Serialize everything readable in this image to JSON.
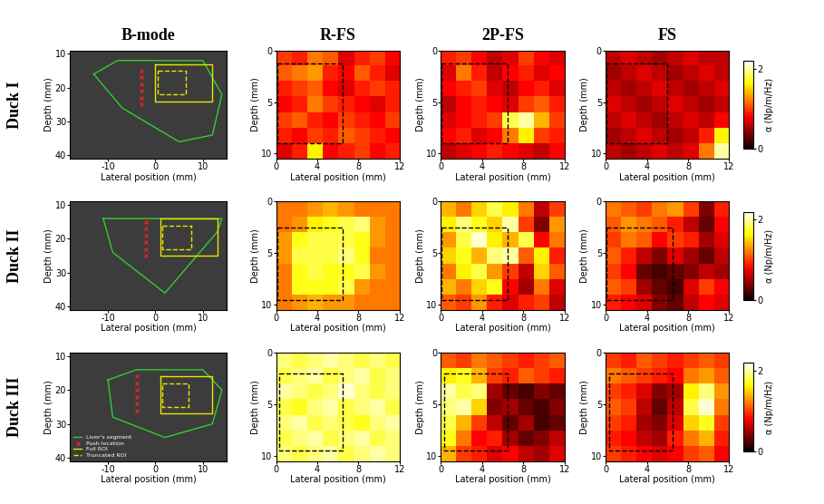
{
  "figure": {
    "column_titles": [
      "B-mode",
      "R-FS",
      "2P-FS",
      "FS"
    ],
    "row_labels": [
      "Duck I",
      "Duck II",
      "Duck III"
    ],
    "colorbar": {
      "label": "α (Np/m/Hz)",
      "range": [
        0,
        2.2
      ],
      "ticks": [
        0,
        2
      ]
    }
  },
  "chart_data": [
    {
      "type": "bmode",
      "xlabel": "Lateral position (mm)",
      "ylabel": "Depth (mm)",
      "xlim": [
        -18,
        15
      ],
      "ylim": [
        41,
        9
      ],
      "xticks": [
        -10,
        0,
        10
      ],
      "yticks": [
        10,
        20,
        30,
        40
      ],
      "liver_segment": {
        "color": "#33cc33",
        "x": [
          -13,
          -8,
          10,
          14,
          12,
          5,
          -7,
          -13
        ],
        "y": [
          16,
          12,
          12,
          22,
          34,
          36,
          26,
          16
        ]
      },
      "push_location": {
        "color": "#ff2020",
        "marker": "x",
        "x": [
          -3,
          -3,
          -3,
          -3,
          -3,
          -3
        ],
        "y": [
          15,
          17,
          19,
          21,
          23,
          25
        ]
      },
      "full_roi": {
        "color": "#e6e600",
        "line_style": "solid",
        "x": [
          0,
          12
        ],
        "y": [
          13,
          24
        ]
      },
      "truncated_roi": {
        "color": "#e6e600",
        "line_style": "dashed",
        "x": [
          0.5,
          6.5
        ],
        "y": [
          15,
          22
        ]
      }
    },
    {
      "type": "heatmap",
      "xlabel": "Lateral position (mm)",
      "ylabel": "Depth (mm)",
      "xlim": [
        0,
        12
      ],
      "ylim": [
        10.5,
        0
      ],
      "xticks": [
        0,
        4,
        8,
        12
      ],
      "yticks": [
        0,
        5,
        10
      ],
      "cells": [
        [
          1.0,
          0.9,
          1.2,
          1.1,
          0.7,
          0.9,
          1.0,
          0.8
        ],
        [
          1.1,
          1.2,
          1.3,
          0.9,
          0.8,
          1.1,
          0.9,
          0.7
        ],
        [
          0.9,
          1.0,
          1.1,
          0.8,
          0.7,
          0.9,
          1.0,
          0.9
        ],
        [
          0.8,
          0.9,
          1.2,
          1.0,
          0.9,
          0.8,
          0.7,
          0.9
        ],
        [
          1.0,
          1.1,
          0.9,
          0.8,
          1.0,
          0.9,
          0.8,
          1.0
        ],
        [
          0.9,
          0.8,
          1.0,
          0.9,
          1.1,
          1.0,
          0.9,
          0.8
        ],
        [
          0.7,
          0.9,
          1.6,
          0.8,
          0.9,
          1.0,
          0.8,
          0.9
        ]
      ],
      "truncated_roi": {
        "color": "black",
        "line_style": "dashed",
        "x": [
          0.1,
          6.5
        ],
        "y": [
          1.3,
          9.0
        ]
      }
    },
    {
      "type": "heatmap",
      "xlabel": "Lateral position (mm)",
      "ylabel": "Depth (mm)",
      "xlim": [
        0,
        12
      ],
      "ylim": [
        10.5,
        0
      ],
      "xticks": [
        0,
        4,
        8,
        12
      ],
      "yticks": [
        0,
        5,
        10
      ],
      "cells": [
        [
          0.9,
          1.0,
          0.8,
          0.6,
          0.7,
          1.0,
          0.8,
          0.7
        ],
        [
          0.7,
          1.2,
          0.9,
          0.6,
          0.8,
          0.9,
          0.7,
          0.8
        ],
        [
          0.8,
          0.9,
          1.0,
          0.7,
          0.6,
          0.8,
          0.9,
          0.7
        ],
        [
          0.6,
          0.8,
          0.9,
          0.8,
          0.7,
          1.0,
          1.1,
          0.9
        ],
        [
          0.7,
          0.8,
          0.9,
          1.0,
          1.8,
          2.0,
          1.4,
          1.0
        ],
        [
          0.8,
          0.9,
          0.7,
          0.8,
          1.2,
          1.6,
          1.0,
          0.9
        ],
        [
          0.6,
          0.7,
          0.8,
          0.9,
          0.8,
          0.7,
          0.6,
          0.8
        ]
      ],
      "truncated_roi": {
        "color": "black",
        "line_style": "dashed",
        "x": [
          0.1,
          6.5
        ],
        "y": [
          1.3,
          9.0
        ]
      }
    },
    {
      "type": "heatmap",
      "xlabel": "Lateral position (mm)",
      "ylabel": "Depth (mm)",
      "xlim": [
        0,
        12
      ],
      "ylim": [
        10.5,
        0
      ],
      "xticks": [
        0,
        4,
        8,
        12
      ],
      "yticks": [
        0,
        5,
        10
      ],
      "cells": [
        [
          0.6,
          0.7,
          0.6,
          0.5,
          0.6,
          0.7,
          0.6,
          0.6
        ],
        [
          0.5,
          0.6,
          0.7,
          0.6,
          0.5,
          0.6,
          0.7,
          0.6
        ],
        [
          0.6,
          0.5,
          0.6,
          0.7,
          0.6,
          0.5,
          0.6,
          0.7
        ],
        [
          0.7,
          0.6,
          0.5,
          0.6,
          0.7,
          0.6,
          0.5,
          0.6
        ],
        [
          0.6,
          0.7,
          0.6,
          0.5,
          0.6,
          0.7,
          0.6,
          0.8
        ],
        [
          0.5,
          0.6,
          0.7,
          0.6,
          0.5,
          0.6,
          0.9,
          1.6
        ],
        [
          0.6,
          0.5,
          0.6,
          0.7,
          0.6,
          0.7,
          1.2,
          2.0
        ]
      ],
      "truncated_roi": {
        "color": "black",
        "line_style": "dashed",
        "x": [
          0.1,
          6.0
        ],
        "y": [
          1.3,
          9.0
        ]
      }
    },
    {
      "type": "bmode",
      "xlabel": "Lateral position (mm)",
      "ylabel": "Depth (mm)",
      "xlim": [
        -18,
        15
      ],
      "ylim": [
        41,
        9
      ],
      "xticks": [
        -10,
        0,
        10
      ],
      "yticks": [
        10,
        20,
        30,
        40
      ],
      "liver_segment": {
        "color": "#33cc33",
        "x": [
          -11,
          14,
          13,
          2,
          -9,
          -11
        ],
        "y": [
          14,
          14,
          18,
          36,
          24,
          14
        ]
      },
      "push_location": {
        "color": "#ff2020",
        "marker": "x",
        "x": [
          -2,
          -2,
          -2,
          -2,
          -2,
          -2
        ],
        "y": [
          15,
          17,
          19,
          21,
          23,
          25
        ]
      },
      "full_roi": {
        "color": "#e6e600",
        "line_style": "solid",
        "x": [
          1,
          13
        ],
        "y": [
          14,
          25
        ]
      },
      "truncated_roi": {
        "color": "#e6e600",
        "line_style": "dashed",
        "x": [
          1.5,
          7.5
        ],
        "y": [
          16,
          23
        ]
      }
    },
    {
      "type": "heatmap",
      "xlabel": "Lateral position (mm)",
      "ylabel": "Depth (mm)",
      "xlim": [
        0,
        12
      ],
      "ylim": [
        10.5,
        0
      ],
      "xticks": [
        0,
        4,
        8,
        12
      ],
      "yticks": [
        0,
        5,
        10
      ],
      "cells": [
        [
          1.2,
          1.2,
          1.3,
          1.4,
          1.3,
          1.2,
          1.2,
          1.2
        ],
        [
          1.2,
          1.3,
          1.6,
          1.7,
          1.8,
          1.9,
          1.3,
          1.2
        ],
        [
          1.3,
          1.7,
          1.8,
          1.8,
          1.8,
          1.7,
          1.3,
          1.2
        ],
        [
          1.3,
          1.8,
          1.8,
          1.8,
          1.9,
          1.7,
          1.2,
          1.2
        ],
        [
          1.2,
          1.7,
          1.8,
          1.7,
          1.7,
          1.8,
          1.3,
          1.2
        ],
        [
          1.2,
          1.7,
          1.7,
          1.7,
          1.8,
          1.3,
          1.2,
          1.2
        ],
        [
          1.2,
          1.3,
          1.4,
          1.3,
          1.3,
          1.2,
          1.2,
          1.2
        ]
      ],
      "truncated_roi": {
        "color": "black",
        "line_style": "dashed",
        "x": [
          0.1,
          6.5
        ],
        "y": [
          2.5,
          9.5
        ]
      }
    },
    {
      "type": "heatmap",
      "xlabel": "Lateral position (mm)",
      "ylabel": "Depth (mm)",
      "xlim": [
        0,
        12
      ],
      "ylim": [
        10.5,
        0
      ],
      "xticks": [
        0,
        4,
        8,
        12
      ],
      "yticks": [
        0,
        5,
        10
      ],
      "cells": [
        [
          1.4,
          1.2,
          1.5,
          1.8,
          1.6,
          1.2,
          0.6,
          1.0
        ],
        [
          1.6,
          1.9,
          1.7,
          1.5,
          2.0,
          1.0,
          0.4,
          1.3
        ],
        [
          1.3,
          1.8,
          2.1,
          1.6,
          1.4,
          1.8,
          0.8,
          1.2
        ],
        [
          1.5,
          1.7,
          1.4,
          1.9,
          2.0,
          1.1,
          1.6,
          0.9
        ],
        [
          1.2,
          1.6,
          1.8,
          1.3,
          1.0,
          0.6,
          1.5,
          1.1
        ],
        [
          1.4,
          1.2,
          1.5,
          1.7,
          0.8,
          0.5,
          1.2,
          0.7
        ],
        [
          1.1,
          1.0,
          1.3,
          0.9,
          0.7,
          0.9,
          1.0,
          0.6
        ]
      ],
      "truncated_roi": {
        "color": "black",
        "line_style": "dashed",
        "x": [
          0.1,
          6.5
        ],
        "y": [
          2.5,
          9.5
        ]
      }
    },
    {
      "type": "heatmap",
      "xlabel": "Lateral position (mm)",
      "ylabel": "Depth (mm)",
      "xlim": [
        0,
        12
      ],
      "ylim": [
        10.5,
        0
      ],
      "xticks": [
        0,
        4,
        8,
        12
      ],
      "yticks": [
        0,
        5,
        10
      ],
      "cells": [
        [
          1.2,
          1.1,
          1.0,
          1.2,
          1.3,
          1.0,
          0.4,
          0.9
        ],
        [
          1.1,
          1.3,
          1.2,
          1.1,
          0.9,
          0.6,
          0.3,
          0.8
        ],
        [
          1.0,
          1.2,
          1.1,
          0.8,
          1.0,
          0.9,
          0.5,
          0.7
        ],
        [
          1.1,
          0.9,
          0.6,
          0.4,
          0.7,
          0.5,
          0.3,
          0.6
        ],
        [
          1.0,
          0.8,
          0.3,
          0.2,
          0.3,
          0.4,
          0.6,
          0.5
        ],
        [
          1.1,
          1.0,
          0.5,
          0.3,
          0.2,
          0.7,
          1.0,
          0.8
        ],
        [
          0.9,
          0.8,
          0.7,
          0.4,
          0.3,
          0.6,
          0.8,
          0.7
        ]
      ],
      "truncated_roi": {
        "color": "black",
        "line_style": "dashed",
        "x": [
          0.1,
          6.5
        ],
        "y": [
          2.5,
          9.5
        ]
      }
    },
    {
      "type": "bmode",
      "xlabel": "Lateral position (mm)",
      "ylabel": "Depth (mm)",
      "xlim": [
        -18,
        15
      ],
      "ylim": [
        41,
        9
      ],
      "xticks": [
        -10,
        0,
        10
      ],
      "yticks": [
        10,
        20,
        30,
        40
      ],
      "legend": "lower left",
      "liver_segment": {
        "name": "Liver's segment",
        "color": "#33cc33",
        "x": [
          -10,
          -4,
          10,
          14,
          12,
          2,
          -9,
          -10
        ],
        "y": [
          17,
          14,
          14,
          20,
          30,
          34,
          28,
          17
        ]
      },
      "push_location": {
        "name": "Push location",
        "color": "#ff2020",
        "marker": "x",
        "x": [
          -4,
          -4,
          -4,
          -4,
          -4,
          -4
        ],
        "y": [
          16,
          18,
          20,
          22,
          24,
          26
        ]
      },
      "full_roi": {
        "name": "Full ROI",
        "color": "#e6e600",
        "line_style": "solid",
        "x": [
          1,
          12
        ],
        "y": [
          16,
          27
        ]
      },
      "truncated_roi": {
        "name": "Truncated ROI",
        "color": "#e6e600",
        "line_style": "dashed",
        "x": [
          1.5,
          7
        ],
        "y": [
          18,
          25
        ]
      }
    },
    {
      "type": "heatmap",
      "xlabel": "Lateral position (mm)",
      "ylabel": "Depth (mm)",
      "xlim": [
        0,
        12
      ],
      "ylim": [
        10.5,
        0
      ],
      "xticks": [
        0,
        4,
        8,
        12
      ],
      "yticks": [
        0,
        5,
        10
      ],
      "cells": [
        [
          1.9,
          1.8,
          1.9,
          2.0,
          1.9,
          1.8,
          1.9,
          1.8
        ],
        [
          1.8,
          1.9,
          2.0,
          1.8,
          1.9,
          2.0,
          1.8,
          1.9
        ],
        [
          2.0,
          1.9,
          1.8,
          1.9,
          2.1,
          1.9,
          1.8,
          1.9
        ],
        [
          1.8,
          1.7,
          1.9,
          2.0,
          1.8,
          1.9,
          2.0,
          1.8
        ],
        [
          1.9,
          2.0,
          1.8,
          1.9,
          1.8,
          1.7,
          1.9,
          2.0
        ],
        [
          1.8,
          1.9,
          2.0,
          1.8,
          1.9,
          2.0,
          1.8,
          1.9
        ],
        [
          1.9,
          1.8,
          1.9,
          2.0,
          1.8,
          1.9,
          2.0,
          1.9
        ]
      ],
      "truncated_roi": {
        "color": "black",
        "line_style": "dashed",
        "x": [
          0.3,
          6.5
        ],
        "y": [
          2.0,
          9.5
        ]
      }
    },
    {
      "type": "heatmap",
      "xlabel": "Lateral position (mm)",
      "ylabel": "Depth (mm)",
      "xlim": [
        0,
        12
      ],
      "ylim": [
        10.5,
        0
      ],
      "xticks": [
        0,
        4,
        8,
        12
      ],
      "yticks": [
        0,
        5,
        10
      ],
      "cells": [
        [
          1.1,
          1.0,
          1.2,
          1.1,
          1.0,
          0.9,
          1.0,
          1.1
        ],
        [
          1.6,
          1.7,
          1.4,
          1.0,
          0.9,
          1.1,
          1.0,
          0.9
        ],
        [
          2.0,
          1.8,
          1.9,
          0.5,
          0.3,
          0.2,
          0.4,
          0.3
        ],
        [
          1.9,
          2.0,
          1.5,
          0.4,
          0.5,
          0.3,
          0.2,
          0.4
        ],
        [
          1.8,
          1.4,
          1.0,
          0.6,
          0.3,
          0.5,
          0.2,
          0.3
        ],
        [
          1.7,
          1.2,
          0.8,
          0.9,
          0.5,
          0.3,
          0.4,
          0.6
        ],
        [
          1.4,
          1.0,
          0.9,
          0.7,
          0.8,
          0.6,
          0.5,
          0.7
        ]
      ],
      "truncated_roi": {
        "color": "black",
        "line_style": "dashed",
        "x": [
          0.3,
          6.5
        ],
        "y": [
          2.0,
          9.5
        ]
      }
    },
    {
      "type": "heatmap",
      "xlabel": "Lateral position (mm)",
      "ylabel": "Depth (mm)",
      "xlim": [
        0,
        12
      ],
      "ylim": [
        10.5,
        0
      ],
      "xticks": [
        0,
        4,
        8,
        12
      ],
      "yticks": [
        0,
        5,
        10
      ],
      "cells": [
        [
          1.0,
          0.9,
          1.1,
          1.0,
          0.9,
          1.0,
          1.1,
          1.0
        ],
        [
          1.2,
          1.1,
          1.0,
          0.9,
          0.8,
          1.2,
          1.3,
          1.1
        ],
        [
          1.0,
          0.9,
          0.7,
          0.4,
          0.5,
          1.6,
          1.9,
          1.3
        ],
        [
          1.1,
          1.0,
          0.6,
          0.3,
          0.6,
          1.8,
          2.1,
          1.2
        ],
        [
          1.0,
          0.9,
          0.5,
          0.4,
          0.7,
          1.5,
          1.7,
          1.0
        ],
        [
          0.9,
          0.8,
          0.6,
          0.5,
          0.9,
          1.2,
          1.4,
          0.9
        ],
        [
          1.0,
          0.9,
          0.8,
          0.7,
          0.8,
          1.0,
          1.1,
          0.8
        ]
      ],
      "truncated_roi": {
        "color": "black",
        "line_style": "dashed",
        "x": [
          0.3,
          6.5
        ],
        "y": [
          2.0,
          9.5
        ]
      }
    }
  ]
}
